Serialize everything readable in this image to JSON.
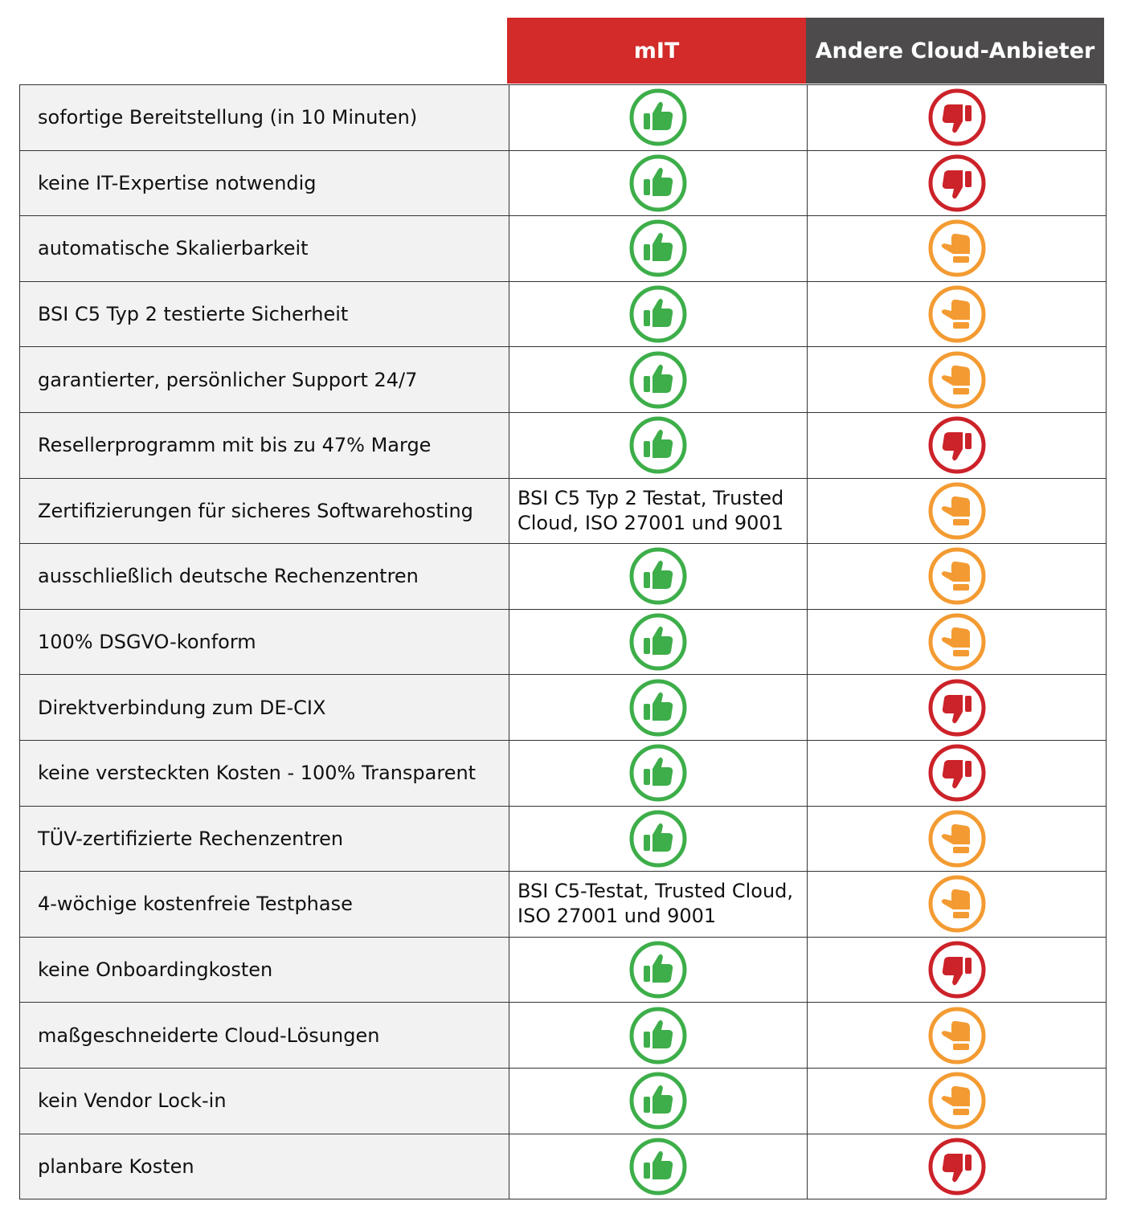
{
  "header": {
    "columns": [
      "mIT",
      "Andere Cloud-Anbieter"
    ]
  },
  "rows": [
    {
      "label": "sofortige Bereitstellung (in 10 Minuten)",
      "mit": {
        "rating": "good"
      },
      "other": {
        "rating": "bad"
      }
    },
    {
      "label": "keine IT-Expertise notwendig",
      "mit": {
        "rating": "good"
      },
      "other": {
        "rating": "bad"
      }
    },
    {
      "label": "automatische Skalierbarkeit",
      "mit": {
        "rating": "good"
      },
      "other": {
        "rating": "neutral"
      }
    },
    {
      "label": "BSI C5 Typ 2 testierte Sicherheit",
      "mit": {
        "rating": "good"
      },
      "other": {
        "rating": "neutral"
      }
    },
    {
      "label": "garantierter, persönlicher Support 24/7",
      "mit": {
        "rating": "good"
      },
      "other": {
        "rating": "neutral"
      }
    },
    {
      "label": "Resellerprogramm mit bis zu 47% Marge",
      "mit": {
        "rating": "good"
      },
      "other": {
        "rating": "bad"
      }
    },
    {
      "label": "Zertifizierungen für sicheres Softwarehosting",
      "mit": {
        "lines": [
          "BSI C5 Typ 2 Testat, Trusted",
          "Cloud, ISO 27001 und 9001"
        ]
      },
      "other": {
        "rating": "neutral"
      }
    },
    {
      "label": "ausschließlich deutsche Rechenzentren",
      "mit": {
        "rating": "good"
      },
      "other": {
        "rating": "neutral"
      }
    },
    {
      "label": "100% DSGVO-konform",
      "mit": {
        "rating": "good"
      },
      "other": {
        "rating": "neutral"
      }
    },
    {
      "label": "Direktverbindung zum DE-CIX",
      "mit": {
        "rating": "good"
      },
      "other": {
        "rating": "bad"
      }
    },
    {
      "label": "keine versteckten Kosten - 100% Transparent",
      "mit": {
        "rating": "good"
      },
      "other": {
        "rating": "bad"
      }
    },
    {
      "label": "TÜV-zertifizierte Rechenzentren",
      "mit": {
        "rating": "good"
      },
      "other": {
        "rating": "neutral"
      }
    },
    {
      "label": "4-wöchige kostenfreie Testphase",
      "mit": {
        "lines": [
          "BSI C5-Testat, Trusted Cloud,",
          "ISO 27001 und 9001"
        ]
      },
      "other": {
        "rating": "neutral"
      }
    },
    {
      "label": "keine Onboardingkosten",
      "mit": {
        "rating": "good"
      },
      "other": {
        "rating": "bad"
      }
    },
    {
      "label": "maßgeschneiderte Cloud-Lösungen",
      "mit": {
        "rating": "good"
      },
      "other": {
        "rating": "neutral"
      }
    },
    {
      "label": "kein Vendor Lock-in",
      "mit": {
        "rating": "good"
      },
      "other": {
        "rating": "neutral"
      }
    },
    {
      "label": "planbare Kosten",
      "mit": {
        "rating": "good"
      },
      "other": {
        "rating": "bad"
      }
    }
  ]
}
